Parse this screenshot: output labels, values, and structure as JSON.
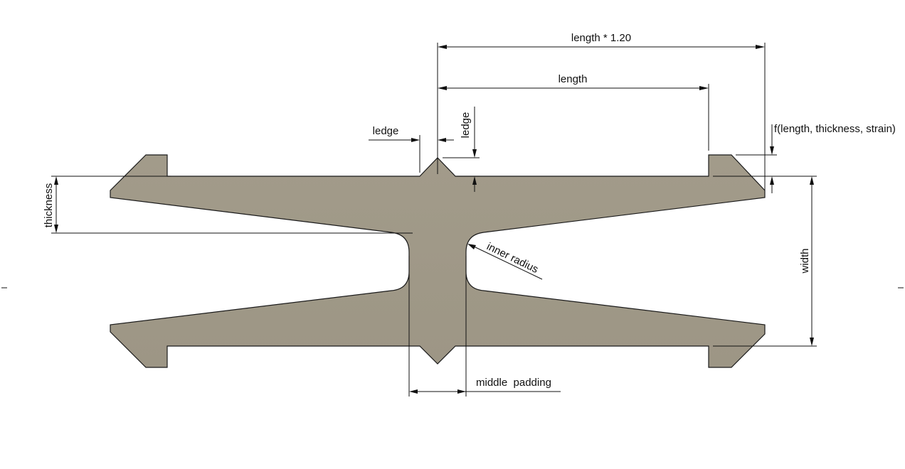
{
  "colors": {
    "profile_fill": "#a29b8a",
    "profile_edge": "#1a1a1a",
    "dimension": "#111111",
    "background": "#ffffff"
  },
  "labels": {
    "length_scaled": "length * 1.20",
    "length": "length",
    "ledge_horizontal": "ledge",
    "ledge_vertical": "ledge",
    "f_function": "f(length, thickness, strain)",
    "thickness": "thickness",
    "width": "width",
    "inner_radius": "inner radius",
    "middle_padding": "middle  padding"
  }
}
